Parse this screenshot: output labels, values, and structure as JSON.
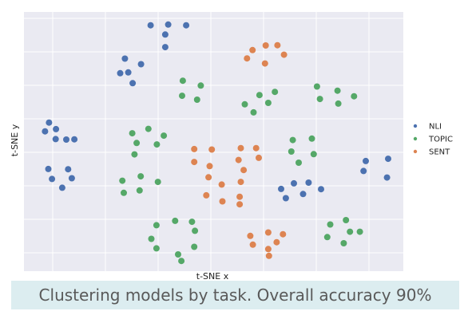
{
  "caption": "Clustering models by task. Overall accuracy 90%",
  "chart_data": {
    "type": "scatter",
    "title": "",
    "xlabel": "t-SNE x",
    "ylabel": "t-SNE y",
    "xlim": [
      0,
      100
    ],
    "ylim": [
      0,
      100
    ],
    "grid": true,
    "legend_position": "right",
    "series": [
      {
        "name": "NLI",
        "color": "#4c72b0",
        "points": [
          [
            32.8,
            96.5
          ],
          [
            37.6,
            96.8
          ],
          [
            42.5,
            96.5
          ],
          [
            36.8,
            92.7
          ],
          [
            36.8,
            87.5
          ],
          [
            24.5,
            76.8
          ],
          [
            25.8,
            82.8
          ],
          [
            30.2,
            80.5
          ],
          [
            26.7,
            77.1
          ],
          [
            27.9,
            72.7
          ],
          [
            5.1,
            56.5
          ],
          [
            4.0,
            52.9
          ],
          [
            7.0,
            53.8
          ],
          [
            9.8,
            49.5
          ],
          [
            6.9,
            49.7
          ],
          [
            12.0,
            49.6
          ],
          [
            4.9,
            37.4
          ],
          [
            10.3,
            37.3
          ],
          [
            5.9,
            33.3
          ],
          [
            11.3,
            33.6
          ],
          [
            8.7,
            29.7
          ],
          [
            68.4,
            29.2
          ],
          [
            71.9,
            31.5
          ],
          [
            75.9,
            31.8
          ],
          [
            69.7,
            25.4
          ],
          [
            74.4,
            27.1
          ],
          [
            79.3,
            29.1
          ],
          [
            91.5,
            40.7
          ],
          [
            97.6,
            41.6
          ],
          [
            90.9,
            36.6
          ],
          [
            97.3,
            33.9
          ]
        ]
      },
      {
        "name": "TOPIC",
        "color": "#55a868",
        "points": [
          [
            41.6,
            73.7
          ],
          [
            46.5,
            71.7
          ],
          [
            41.4,
            67.5
          ],
          [
            45.5,
            65.9
          ],
          [
            58.5,
            64.0
          ],
          [
            62.5,
            67.8
          ],
          [
            66.7,
            69.1
          ],
          [
            64.9,
            64.6
          ],
          [
            60.9,
            60.7
          ],
          [
            78.2,
            71.3
          ],
          [
            83.8,
            69.6
          ],
          [
            79.0,
            66.2
          ],
          [
            84.0,
            64.3
          ],
          [
            88.3,
            67.3
          ],
          [
            27.8,
            52.1
          ],
          [
            32.2,
            53.9
          ],
          [
            36.4,
            51.1
          ],
          [
            29.0,
            48.1
          ],
          [
            34.5,
            47.5
          ],
          [
            28.4,
            43.4
          ],
          [
            71.6,
            49.3
          ],
          [
            76.8,
            49.9
          ],
          [
            71.2,
            44.6
          ],
          [
            77.3,
            43.5
          ],
          [
            73.2,
            40.0
          ],
          [
            25.1,
            32.6
          ],
          [
            30.1,
            34.4
          ],
          [
            34.8,
            32.1
          ],
          [
            25.5,
            27.6
          ],
          [
            29.8,
            28.6
          ],
          [
            34.4,
            14.3
          ],
          [
            39.5,
            16.1
          ],
          [
            44.1,
            15.7
          ],
          [
            33.0,
            8.7
          ],
          [
            44.9,
            12.0
          ],
          [
            34.4,
            4.8
          ],
          [
            40.3,
            2.3
          ],
          [
            44.7,
            5.4
          ],
          [
            41.2,
            -0.4
          ],
          [
            86.1,
            16.4
          ],
          [
            81.8,
            14.6
          ],
          [
            87.2,
            11.6
          ],
          [
            81.0,
            9.4
          ],
          [
            85.5,
            6.9
          ],
          [
            89.9,
            11.6
          ]
        ]
      },
      {
        "name": "SENT",
        "color": "#dd8452",
        "points": [
          [
            60.6,
            86.3
          ],
          [
            64.2,
            88.2
          ],
          [
            67.4,
            88.3
          ],
          [
            69.2,
            84.4
          ],
          [
            59.1,
            82.9
          ],
          [
            64.0,
            80.8
          ],
          [
            44.7,
            45.6
          ],
          [
            49.5,
            45.4
          ],
          [
            44.7,
            40.3
          ],
          [
            48.9,
            38.6
          ],
          [
            48.6,
            34.0
          ],
          [
            57.4,
            46.0
          ],
          [
            61.6,
            46.0
          ],
          [
            56.8,
            41.1
          ],
          [
            62.3,
            42.0
          ],
          [
            58.2,
            37.0
          ],
          [
            57.4,
            32.1
          ],
          [
            52.2,
            31.0
          ],
          [
            48.0,
            26.6
          ],
          [
            52.4,
            24.1
          ],
          [
            57.1,
            26.0
          ],
          [
            57.1,
            22.9
          ],
          [
            60.0,
            9.9
          ],
          [
            64.9,
            11.3
          ],
          [
            68.9,
            10.6
          ],
          [
            60.7,
            6.3
          ],
          [
            64.9,
            4.5
          ],
          [
            67.2,
            7.3
          ],
          [
            65.1,
            1.7
          ]
        ]
      }
    ]
  }
}
